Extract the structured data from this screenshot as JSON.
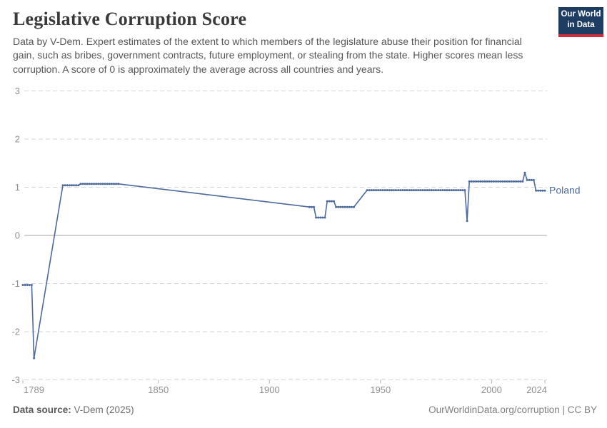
{
  "header": {
    "title": "Legislative Corruption Score",
    "subtitle": "Data by V-Dem. Expert estimates of the extent to which members of the legislature abuse their position for financial gain, such as bribes, government contracts, future employment, or stealing from the state. Higher scores mean less corruption. A score of 0 is approximately the average across all countries and years.",
    "logo": {
      "line1": "Our World",
      "line2": "in Data"
    }
  },
  "footer": {
    "data_source_label": "Data source:",
    "data_source_value": "V-Dem (2025)",
    "attribution": "OurWorldinData.org/corruption | CC BY"
  },
  "colors": {
    "series_blue": "#4C6A9C",
    "gridline": "#d6d6d6",
    "zero_line": "#a5a5a5",
    "tick_text": "#8f8f8f",
    "logo_navy": "#1d3d63",
    "logo_red": "#cd2d3c"
  },
  "chart_data": {
    "type": "line",
    "title": "Legislative Corruption Score",
    "xlabel": "",
    "ylabel": "",
    "x_range": [
      1789,
      2024
    ],
    "ylim": [
      -3,
      3
    ],
    "y_ticks": [
      3,
      2,
      1,
      0,
      -1,
      -2,
      -3
    ],
    "x_ticks": [
      1789,
      1850,
      1900,
      1950,
      2000,
      2024
    ],
    "grid": "dashed horizontal gridlines, solid line at 0",
    "legend_position": "entity label at line end",
    "notes": "Data gaps (1795-1806, 1833-1917, 1939-1943) are bridged with straight interpolation lines without markers",
    "series": [
      {
        "name": "Poland",
        "color": "#4C6A9C",
        "marker": "circle",
        "points": [
          [
            1789,
            -1.03
          ],
          [
            1790,
            -1.03
          ],
          [
            1791,
            -1.03
          ],
          [
            1792,
            -1.03
          ],
          [
            1793,
            -1.03
          ],
          [
            1794,
            -2.55
          ],
          [
            1807,
            1.04
          ],
          [
            1808,
            1.04
          ],
          [
            1809,
            1.04
          ],
          [
            1810,
            1.04
          ],
          [
            1811,
            1.04
          ],
          [
            1812,
            1.04
          ],
          [
            1813,
            1.04
          ],
          [
            1814,
            1.04
          ],
          [
            1815,
            1.07
          ],
          [
            1816,
            1.07
          ],
          [
            1817,
            1.07
          ],
          [
            1818,
            1.07
          ],
          [
            1819,
            1.07
          ],
          [
            1820,
            1.07
          ],
          [
            1821,
            1.07
          ],
          [
            1822,
            1.07
          ],
          [
            1823,
            1.07
          ],
          [
            1824,
            1.07
          ],
          [
            1825,
            1.07
          ],
          [
            1826,
            1.07
          ],
          [
            1827,
            1.07
          ],
          [
            1828,
            1.07
          ],
          [
            1829,
            1.07
          ],
          [
            1830,
            1.07
          ],
          [
            1831,
            1.07
          ],
          [
            1832,
            1.07
          ],
          [
            1918,
            0.59
          ],
          [
            1919,
            0.59
          ],
          [
            1920,
            0.59
          ],
          [
            1921,
            0.37
          ],
          [
            1922,
            0.37
          ],
          [
            1923,
            0.37
          ],
          [
            1924,
            0.37
          ],
          [
            1925,
            0.37
          ],
          [
            1926,
            0.71
          ],
          [
            1927,
            0.71
          ],
          [
            1928,
            0.71
          ],
          [
            1929,
            0.71
          ],
          [
            1930,
            0.59
          ],
          [
            1931,
            0.59
          ],
          [
            1932,
            0.59
          ],
          [
            1933,
            0.59
          ],
          [
            1934,
            0.59
          ],
          [
            1935,
            0.59
          ],
          [
            1936,
            0.59
          ],
          [
            1937,
            0.59
          ],
          [
            1938,
            0.59
          ],
          [
            1944,
            0.94
          ],
          [
            1945,
            0.94
          ],
          [
            1946,
            0.94
          ],
          [
            1947,
            0.94
          ],
          [
            1948,
            0.94
          ],
          [
            1949,
            0.94
          ],
          [
            1950,
            0.94
          ],
          [
            1951,
            0.94
          ],
          [
            1952,
            0.94
          ],
          [
            1953,
            0.94
          ],
          [
            1954,
            0.94
          ],
          [
            1955,
            0.94
          ],
          [
            1956,
            0.94
          ],
          [
            1957,
            0.94
          ],
          [
            1958,
            0.94
          ],
          [
            1959,
            0.94
          ],
          [
            1960,
            0.94
          ],
          [
            1961,
            0.94
          ],
          [
            1962,
            0.94
          ],
          [
            1963,
            0.94
          ],
          [
            1964,
            0.94
          ],
          [
            1965,
            0.94
          ],
          [
            1966,
            0.94
          ],
          [
            1967,
            0.94
          ],
          [
            1968,
            0.94
          ],
          [
            1969,
            0.94
          ],
          [
            1970,
            0.94
          ],
          [
            1971,
            0.94
          ],
          [
            1972,
            0.94
          ],
          [
            1973,
            0.94
          ],
          [
            1974,
            0.94
          ],
          [
            1975,
            0.94
          ],
          [
            1976,
            0.94
          ],
          [
            1977,
            0.94
          ],
          [
            1978,
            0.94
          ],
          [
            1979,
            0.94
          ],
          [
            1980,
            0.94
          ],
          [
            1981,
            0.94
          ],
          [
            1982,
            0.94
          ],
          [
            1983,
            0.94
          ],
          [
            1984,
            0.94
          ],
          [
            1985,
            0.94
          ],
          [
            1986,
            0.94
          ],
          [
            1987,
            0.94
          ],
          [
            1988,
            0.94
          ],
          [
            1989,
            0.3
          ],
          [
            1990,
            1.12
          ],
          [
            1991,
            1.12
          ],
          [
            1992,
            1.12
          ],
          [
            1993,
            1.12
          ],
          [
            1994,
            1.12
          ],
          [
            1995,
            1.12
          ],
          [
            1996,
            1.12
          ],
          [
            1997,
            1.12
          ],
          [
            1998,
            1.12
          ],
          [
            1999,
            1.12
          ],
          [
            2000,
            1.12
          ],
          [
            2001,
            1.12
          ],
          [
            2002,
            1.12
          ],
          [
            2003,
            1.12
          ],
          [
            2004,
            1.12
          ],
          [
            2005,
            1.12
          ],
          [
            2006,
            1.12
          ],
          [
            2007,
            1.12
          ],
          [
            2008,
            1.12
          ],
          [
            2009,
            1.12
          ],
          [
            2010,
            1.12
          ],
          [
            2011,
            1.12
          ],
          [
            2012,
            1.12
          ],
          [
            2013,
            1.12
          ],
          [
            2014,
            1.12
          ],
          [
            2015,
            1.3
          ],
          [
            2016,
            1.15
          ],
          [
            2017,
            1.15
          ],
          [
            2018,
            1.15
          ],
          [
            2019,
            1.15
          ],
          [
            2020,
            0.93
          ],
          [
            2021,
            0.93
          ],
          [
            2022,
            0.93
          ],
          [
            2023,
            0.93
          ],
          [
            2024,
            0.93
          ]
        ]
      }
    ]
  }
}
